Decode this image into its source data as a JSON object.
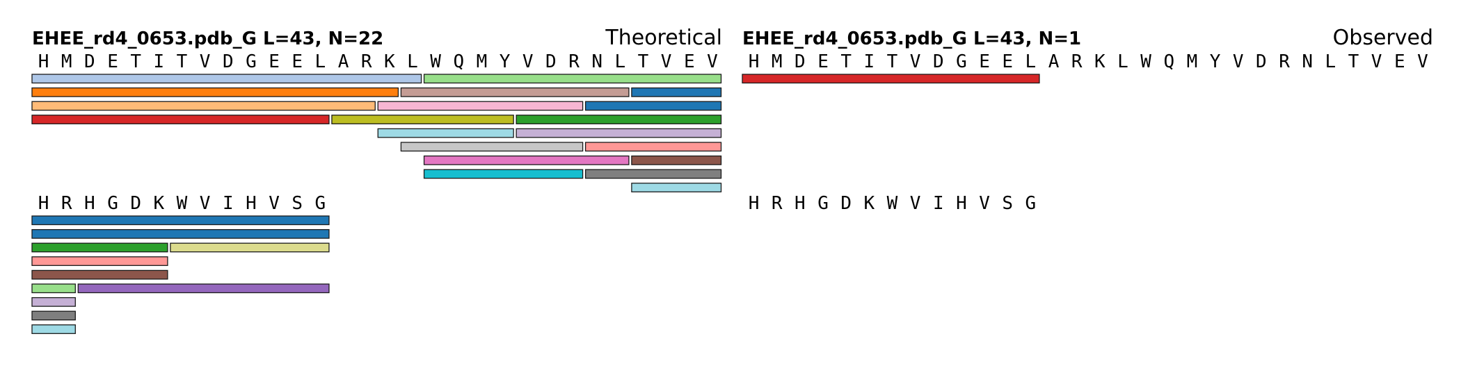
{
  "chart_data": [
    {
      "type": "peptide-coverage",
      "title": "EHEE_rd4_0653.pdb_G  L=43, N=22",
      "label": "Theoretical",
      "sequence_rows": [
        {
          "residues": [
            "H",
            "M",
            "D",
            "E",
            "T",
            "I",
            "T",
            "V",
            "D",
            "G",
            "E",
            "E",
            "L",
            "A",
            "R",
            "K",
            "L",
            "W",
            "Q",
            "M",
            "Y",
            "V",
            "D",
            "R",
            "N",
            "L",
            "T",
            "V",
            "E",
            "V"
          ],
          "peptides": [
            {
              "start": 1,
              "end": 17,
              "lane": 0,
              "color": "#aec7e8"
            },
            {
              "start": 18,
              "end": 30,
              "lane": 0,
              "color": "#98df8a"
            },
            {
              "start": 1,
              "end": 16,
              "lane": 1,
              "color": "#ff7f0e"
            },
            {
              "start": 17,
              "end": 26,
              "lane": 1,
              "color": "#c49c94"
            },
            {
              "start": 27,
              "end": 30,
              "lane": 1,
              "color": "#1f77b4"
            },
            {
              "start": 1,
              "end": 15,
              "lane": 2,
              "color": "#ffbb78"
            },
            {
              "start": 16,
              "end": 24,
              "lane": 2,
              "color": "#f7b6d2"
            },
            {
              "start": 25,
              "end": 30,
              "lane": 2,
              "color": "#1f77b4"
            },
            {
              "start": 1,
              "end": 13,
              "lane": 3,
              "color": "#d62728"
            },
            {
              "start": 14,
              "end": 21,
              "lane": 3,
              "color": "#bcbd22"
            },
            {
              "start": 22,
              "end": 30,
              "lane": 3,
              "color": "#2ca02c"
            },
            {
              "start": 16,
              "end": 21,
              "lane": 4,
              "color": "#9edae5"
            },
            {
              "start": 22,
              "end": 30,
              "lane": 4,
              "color": "#c5b0d5"
            },
            {
              "start": 17,
              "end": 24,
              "lane": 5,
              "color": "#c7c7c7"
            },
            {
              "start": 25,
              "end": 30,
              "lane": 5,
              "color": "#ff9896"
            },
            {
              "start": 18,
              "end": 26,
              "lane": 6,
              "color": "#e377c2"
            },
            {
              "start": 27,
              "end": 30,
              "lane": 6,
              "color": "#8c564b"
            },
            {
              "start": 18,
              "end": 24,
              "lane": 7,
              "color": "#17becf"
            },
            {
              "start": 25,
              "end": 30,
              "lane": 7,
              "color": "#7f7f7f"
            },
            {
              "start": 27,
              "end": 30,
              "lane": 8,
              "color": "#9edae5"
            }
          ]
        },
        {
          "residues": [
            "H",
            "R",
            "H",
            "G",
            "D",
            "K",
            "W",
            "V",
            "I",
            "H",
            "V",
            "S",
            "G"
          ],
          "peptides": [
            {
              "start": 1,
              "end": 13,
              "lane": 0,
              "color": "#1f77b4"
            },
            {
              "start": 1,
              "end": 13,
              "lane": 1,
              "color": "#1f77b4"
            },
            {
              "start": 1,
              "end": 6,
              "lane": 2,
              "color": "#2ca02c"
            },
            {
              "start": 7,
              "end": 13,
              "lane": 2,
              "color": "#dbdb8d"
            },
            {
              "start": 1,
              "end": 6,
              "lane": 3,
              "color": "#ff9896"
            },
            {
              "start": 1,
              "end": 6,
              "lane": 4,
              "color": "#8c564b"
            },
            {
              "start": 1,
              "end": 2,
              "lane": 5,
              "color": "#98df8a"
            },
            {
              "start": 3,
              "end": 13,
              "lane": 5,
              "color": "#9467bd"
            },
            {
              "start": 1,
              "end": 2,
              "lane": 6,
              "color": "#c5b0d5"
            },
            {
              "start": 1,
              "end": 2,
              "lane": 7,
              "color": "#7f7f7f"
            },
            {
              "start": 1,
              "end": 2,
              "lane": 8,
              "color": "#9edae5"
            }
          ]
        }
      ]
    },
    {
      "type": "peptide-coverage",
      "title": "EHEE_rd4_0653.pdb_G  L=43, N=1",
      "label": "Observed",
      "sequence_rows": [
        {
          "residues": [
            "H",
            "M",
            "D",
            "E",
            "T",
            "I",
            "T",
            "V",
            "D",
            "G",
            "E",
            "E",
            "L",
            "A",
            "R",
            "K",
            "L",
            "W",
            "Q",
            "M",
            "Y",
            "V",
            "D",
            "R",
            "N",
            "L",
            "T",
            "V",
            "E",
            "V"
          ],
          "peptides": [
            {
              "start": 1,
              "end": 13,
              "lane": 0,
              "color": "#d62728"
            }
          ]
        },
        {
          "residues": [
            "H",
            "R",
            "H",
            "G",
            "D",
            "K",
            "W",
            "V",
            "I",
            "H",
            "V",
            "S",
            "G"
          ],
          "peptides": []
        }
      ]
    }
  ]
}
